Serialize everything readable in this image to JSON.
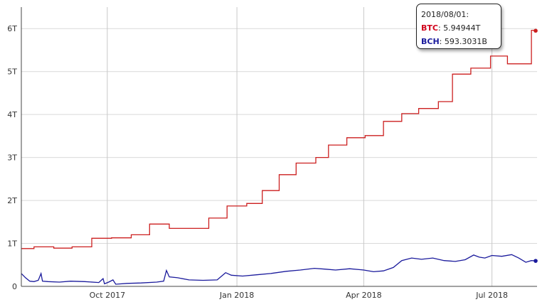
{
  "chart_data": {
    "type": "line",
    "title": "",
    "xlabel": "",
    "ylabel": "",
    "ylim": [
      0,
      6.5
    ],
    "y_unit": "T",
    "grid": true,
    "x_ticks": [
      "Oct 2017",
      "Jan 2018",
      "Apr 2018",
      "Jul 2018"
    ],
    "x_tick_dates": [
      "2017-10-01",
      "2018-01-01",
      "2018-04-01",
      "2018-07-01"
    ],
    "x_range": [
      "2017-08-01",
      "2018-08-02"
    ],
    "y_ticks": [
      0,
      1,
      2,
      3,
      4,
      5,
      6
    ],
    "y_tick_labels": [
      "0",
      "1T",
      "2T",
      "3T",
      "4T",
      "5T",
      "6T"
    ],
    "series": [
      {
        "name": "BTC",
        "color": "#cc1f1f",
        "step": true,
        "points": [
          [
            "2017-08-01",
            0.88
          ],
          [
            "2017-08-10",
            0.92
          ],
          [
            "2017-08-24",
            0.89
          ],
          [
            "2017-09-06",
            0.92
          ],
          [
            "2017-09-20",
            1.12
          ],
          [
            "2017-10-04",
            1.13
          ],
          [
            "2017-10-18",
            1.2
          ],
          [
            "2017-10-31",
            1.45
          ],
          [
            "2017-11-14",
            1.35
          ],
          [
            "2017-12-01",
            1.35
          ],
          [
            "2017-12-12",
            1.59
          ],
          [
            "2017-12-25",
            1.87
          ],
          [
            "2018-01-08",
            1.93
          ],
          [
            "2018-01-19",
            2.23
          ],
          [
            "2018-01-31",
            2.6
          ],
          [
            "2018-02-12",
            2.87
          ],
          [
            "2018-02-26",
            3.0
          ],
          [
            "2018-03-07",
            3.29
          ],
          [
            "2018-03-20",
            3.46
          ],
          [
            "2018-04-02",
            3.51
          ],
          [
            "2018-04-15",
            3.84
          ],
          [
            "2018-04-28",
            4.02
          ],
          [
            "2018-05-10",
            4.14
          ],
          [
            "2018-05-24",
            4.3
          ],
          [
            "2018-06-03",
            4.94
          ],
          [
            "2018-06-16",
            5.08
          ],
          [
            "2018-06-30",
            5.36
          ],
          [
            "2018-07-12",
            5.18
          ],
          [
            "2018-07-24",
            5.18
          ],
          [
            "2018-07-29",
            5.96
          ],
          [
            "2018-08-01",
            5.95
          ]
        ]
      },
      {
        "name": "BCH",
        "color": "#1a1a9c",
        "step": false,
        "points": [
          [
            "2017-08-01",
            0.3
          ],
          [
            "2017-08-04",
            0.2
          ],
          [
            "2017-08-07",
            0.12
          ],
          [
            "2017-08-10",
            0.11
          ],
          [
            "2017-08-13",
            0.14
          ],
          [
            "2017-08-15",
            0.3
          ],
          [
            "2017-08-16",
            0.12
          ],
          [
            "2017-08-20",
            0.11
          ],
          [
            "2017-08-28",
            0.1
          ],
          [
            "2017-09-05",
            0.12
          ],
          [
            "2017-09-15",
            0.11
          ],
          [
            "2017-09-25",
            0.09
          ],
          [
            "2017-09-28",
            0.18
          ],
          [
            "2017-09-29",
            0.06
          ],
          [
            "2017-10-02",
            0.1
          ],
          [
            "2017-10-05",
            0.15
          ],
          [
            "2017-10-07",
            0.05
          ],
          [
            "2017-10-15",
            0.07
          ],
          [
            "2017-10-25",
            0.08
          ],
          [
            "2017-11-05",
            0.1
          ],
          [
            "2017-11-10",
            0.12
          ],
          [
            "2017-11-12",
            0.37
          ],
          [
            "2017-11-14",
            0.22
          ],
          [
            "2017-11-20",
            0.2
          ],
          [
            "2017-11-28",
            0.15
          ],
          [
            "2017-12-08",
            0.14
          ],
          [
            "2017-12-18",
            0.15
          ],
          [
            "2017-12-24",
            0.32
          ],
          [
            "2017-12-28",
            0.26
          ],
          [
            "2018-01-05",
            0.24
          ],
          [
            "2018-01-15",
            0.27
          ],
          [
            "2018-01-25",
            0.3
          ],
          [
            "2018-02-05",
            0.35
          ],
          [
            "2018-02-15",
            0.38
          ],
          [
            "2018-02-25",
            0.42
          ],
          [
            "2018-03-05",
            0.4
          ],
          [
            "2018-03-12",
            0.38
          ],
          [
            "2018-03-22",
            0.41
          ],
          [
            "2018-04-01",
            0.38
          ],
          [
            "2018-04-08",
            0.34
          ],
          [
            "2018-04-15",
            0.36
          ],
          [
            "2018-04-22",
            0.44
          ],
          [
            "2018-04-28",
            0.6
          ],
          [
            "2018-05-05",
            0.66
          ],
          [
            "2018-05-12",
            0.63
          ],
          [
            "2018-05-20",
            0.66
          ],
          [
            "2018-05-28",
            0.6
          ],
          [
            "2018-06-05",
            0.58
          ],
          [
            "2018-06-12",
            0.62
          ],
          [
            "2018-06-18",
            0.73
          ],
          [
            "2018-06-22",
            0.68
          ],
          [
            "2018-06-26",
            0.66
          ],
          [
            "2018-07-01",
            0.72
          ],
          [
            "2018-07-08",
            0.7
          ],
          [
            "2018-07-15",
            0.74
          ],
          [
            "2018-07-20",
            0.66
          ],
          [
            "2018-07-25",
            0.56
          ],
          [
            "2018-07-29",
            0.6
          ],
          [
            "2018-08-01",
            0.593
          ]
        ]
      }
    ]
  },
  "tooltip": {
    "date": "2018/08/01:",
    "rows": [
      {
        "name": "BTC",
        "value": "5.94944T"
      },
      {
        "name": "BCH",
        "value": "593.3031B"
      }
    ]
  }
}
